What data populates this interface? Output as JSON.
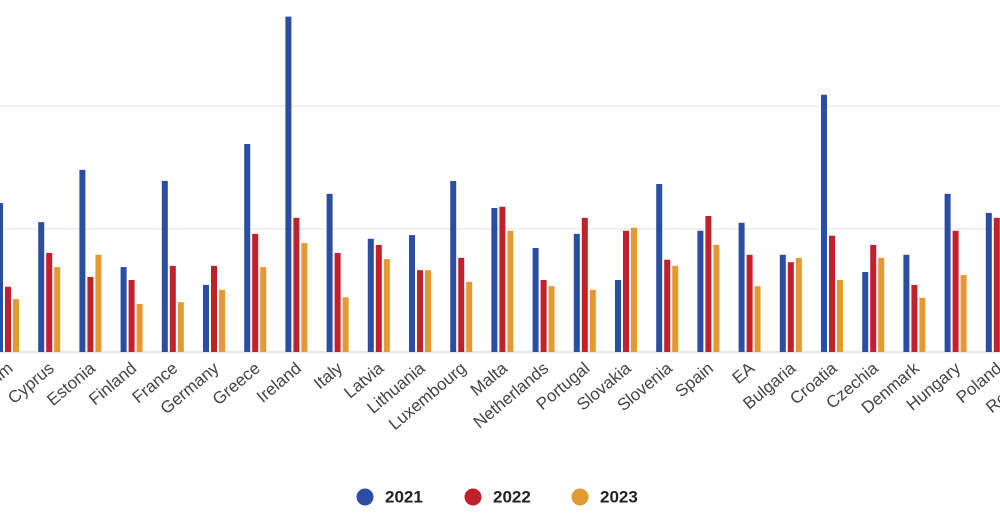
{
  "chart_data": {
    "type": "bar",
    "categories": [
      "Belgium",
      "Cyprus",
      "Estonia",
      "Finland",
      "France",
      "Germany",
      "Greece",
      "Ireland",
      "Italy",
      "Latvia",
      "Lithuania",
      "Luxembourg",
      "Malta",
      "Netherlands",
      "Portugal",
      "Slovakia",
      "Slovenia",
      "Spain",
      "EA",
      "Bulgaria",
      "Croatia",
      "Czechia",
      "Denmark",
      "Hungary",
      "Poland",
      "Romania"
    ],
    "series": [
      {
        "name": "2021",
        "color": "#2b4ea4",
        "values": [
          2.42,
          2.11,
          2.96,
          1.38,
          2.78,
          1.09,
          3.38,
          5.45,
          2.57,
          1.84,
          1.9,
          2.78,
          2.34,
          1.69,
          1.92,
          1.17,
          2.73,
          1.97,
          2.1,
          1.58,
          4.18,
          1.3,
          1.58,
          2.57,
          2.26,
          null
        ]
      },
      {
        "name": "2022",
        "color": "#c1212b",
        "values": [
          1.06,
          1.61,
          1.22,
          1.17,
          1.4,
          1.4,
          1.92,
          2.18,
          1.61,
          1.74,
          1.33,
          1.53,
          2.36,
          1.17,
          2.18,
          1.97,
          1.5,
          2.21,
          1.58,
          1.46,
          1.89,
          1.74,
          1.09,
          1.97,
          2.18,
          null
        ]
      },
      {
        "name": "2023",
        "color": "#e59a31",
        "values": [
          0.86,
          1.38,
          1.58,
          0.78,
          0.81,
          1.01,
          1.38,
          1.77,
          0.89,
          1.51,
          1.33,
          1.14,
          1.97,
          1.07,
          1.01,
          2.02,
          1.4,
          1.74,
          1.07,
          1.53,
          1.17,
          1.53,
          0.88,
          1.25,
          null,
          null
        ]
      }
    ],
    "ylim": [
      0,
      5.72
    ],
    "yticks": [
      0,
      2,
      4
    ],
    "grid": true
  }
}
